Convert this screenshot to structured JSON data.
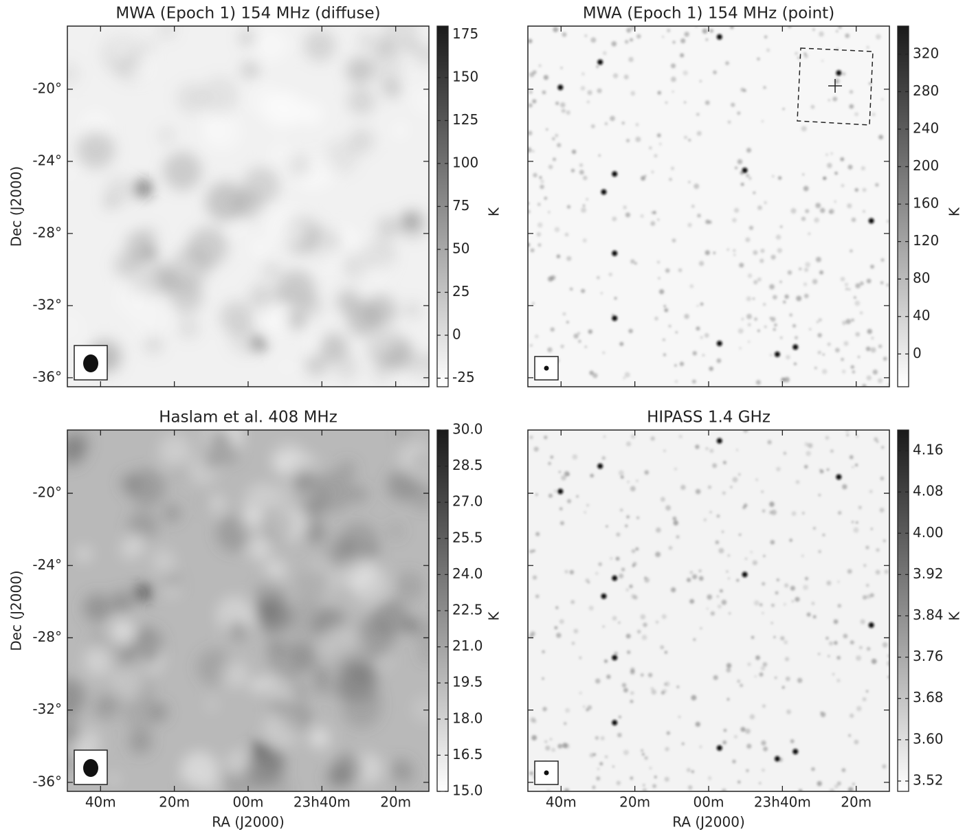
{
  "chart_data": [
    {
      "type": "image",
      "title": "MWA (Epoch 1) 154 MHz (diffuse)",
      "ylabel": "Dec (J2000)",
      "xlim": [
        49,
        -49
      ],
      "xticks": [
        40,
        20,
        0,
        -20,
        -40
      ],
      "ylim": [
        -36.5,
        -16.5
      ],
      "yticks": [
        {
          "value": -20,
          "label": "-20°"
        },
        {
          "value": -24,
          "label": "-24°"
        },
        {
          "value": -28,
          "label": "-28°"
        },
        {
          "value": -32,
          "label": "-32°"
        },
        {
          "value": -36,
          "label": "-36°"
        }
      ],
      "clim": [
        -30,
        180
      ],
      "cticks": [
        175,
        150,
        125,
        100,
        75,
        50,
        25,
        0,
        -25
      ],
      "colorbar_label": "K"
    },
    {
      "type": "image",
      "title": "MWA (Epoch 1) 154 MHz (point)",
      "xlim": [
        49,
        -49
      ],
      "xticks": [
        40,
        20,
        0,
        -20,
        -40
      ],
      "ylim": [
        -36.5,
        -16.5
      ],
      "yticks": [
        -20,
        -24,
        -28,
        -32,
        -36
      ],
      "clim": [
        -35,
        350
      ],
      "cticks": [
        320,
        280,
        240,
        200,
        160,
        120,
        80,
        40,
        0
      ],
      "colorbar_label": "K"
    },
    {
      "type": "image",
      "title": "Haslam et al. 408 MHz",
      "ylabel": "Dec (J2000)",
      "xlabel": "RA (J2000)",
      "xlim": [
        49,
        -49
      ],
      "xticks": [
        {
          "value": 40,
          "label": "40m"
        },
        {
          "value": 20,
          "label": "20m"
        },
        {
          "value": 0,
          "label": "00m"
        },
        {
          "value": -20,
          "label": "23h40m"
        },
        {
          "value": -40,
          "label": "20m"
        }
      ],
      "ylim": [
        -36.5,
        -16.5
      ],
      "yticks": [
        {
          "value": -20,
          "label": "-20°"
        },
        {
          "value": -24,
          "label": "-24°"
        },
        {
          "value": -28,
          "label": "-28°"
        },
        {
          "value": -32,
          "label": "-32°"
        },
        {
          "value": -36,
          "label": "-36°"
        }
      ],
      "clim": [
        15,
        30
      ],
      "cticks": [
        {
          "value": 30,
          "label": "30.0"
        },
        {
          "value": 28.5,
          "label": "28.5"
        },
        {
          "value": 27,
          "label": "27.0"
        },
        {
          "value": 25.5,
          "label": "25.5"
        },
        {
          "value": 24,
          "label": "24.0"
        },
        {
          "value": 22.5,
          "label": "22.5"
        },
        {
          "value": 21,
          "label": "21.0"
        },
        {
          "value": 19.5,
          "label": "19.5"
        },
        {
          "value": 18,
          "label": "18.0"
        },
        {
          "value": 16.5,
          "label": "16.5"
        },
        {
          "value": 15,
          "label": "15.0"
        }
      ],
      "colorbar_label": "K"
    },
    {
      "type": "image",
      "title": "HIPASS 1.4 GHz",
      "xlabel": "RA (J2000)",
      "xlim": [
        49,
        -49
      ],
      "xticks": [
        {
          "value": 40,
          "label": "40m"
        },
        {
          "value": 20,
          "label": "20m"
        },
        {
          "value": 0,
          "label": "00m"
        },
        {
          "value": -20,
          "label": "23h40m"
        },
        {
          "value": -40,
          "label": "20m"
        }
      ],
      "ylim": [
        -36.5,
        -16.5
      ],
      "yticks": [
        -20,
        -24,
        -28,
        -32,
        -36
      ],
      "clim": [
        3.5,
        4.2
      ],
      "cticks": [
        4.16,
        4.08,
        {
          "value": 4,
          "label": "4.00"
        },
        3.92,
        3.84,
        3.76,
        3.68,
        {
          "value": 3.6,
          "label": "3.60"
        },
        3.52
      ],
      "colorbar_label": "K"
    }
  ]
}
